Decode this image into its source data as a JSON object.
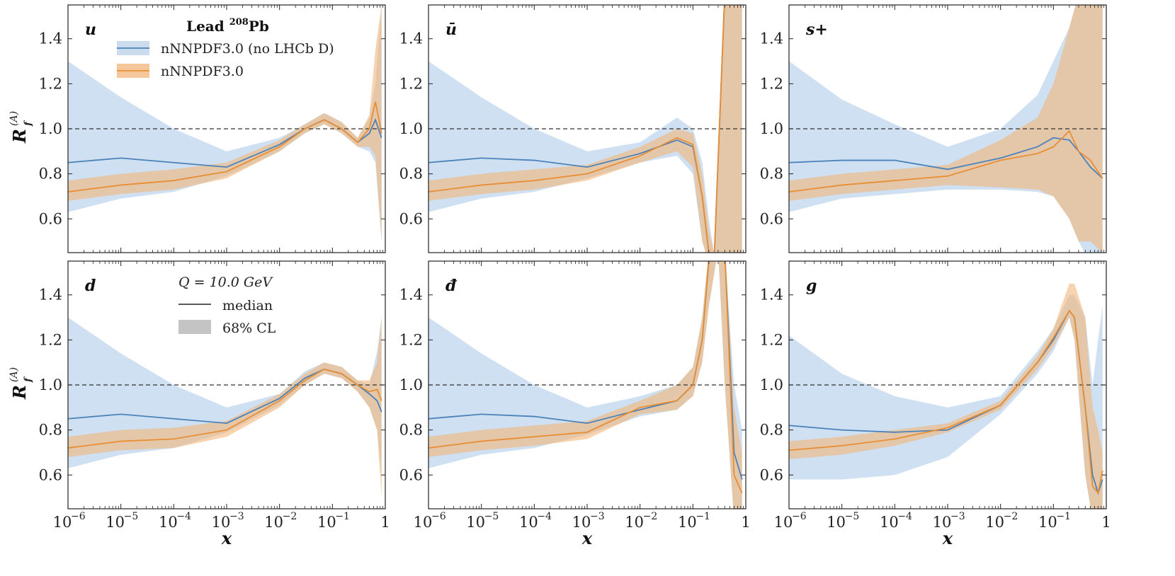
{
  "chart_data": [
    {
      "type": "line",
      "panel": "u",
      "label": "u",
      "x": [
        1e-06,
        1e-05,
        0.0001,
        0.001,
        0.01,
        0.03,
        0.07,
        0.15,
        0.3,
        0.5,
        0.65,
        0.85
      ],
      "series": [
        {
          "name": "nNNPDF3.0 (no LHCb D)",
          "median": [
            0.85,
            0.87,
            0.85,
            0.83,
            0.93,
            1.0,
            1.04,
            1.0,
            0.94,
            0.98,
            1.04,
            0.96
          ],
          "lo": [
            0.63,
            0.69,
            0.72,
            0.79,
            0.9,
            0.98,
            1.02,
            0.98,
            0.92,
            0.9,
            0.85,
            0.5
          ],
          "hi": [
            1.3,
            1.14,
            1.0,
            0.9,
            0.96,
            1.02,
            1.07,
            1.03,
            0.96,
            1.05,
            1.2,
            1.55
          ]
        },
        {
          "name": "nNNPDF3.0",
          "median": [
            0.72,
            0.75,
            0.77,
            0.81,
            0.92,
            1.0,
            1.04,
            1.0,
            0.94,
            1.0,
            1.12,
            0.98
          ],
          "lo": [
            0.68,
            0.71,
            0.73,
            0.78,
            0.9,
            0.98,
            1.02,
            0.98,
            0.92,
            0.92,
            0.88,
            0.5
          ],
          "hi": [
            0.77,
            0.8,
            0.82,
            0.85,
            0.95,
            1.02,
            1.07,
            1.03,
            0.96,
            1.06,
            1.35,
            1.55
          ]
        }
      ]
    },
    {
      "type": "line",
      "panel": "ubar",
      "label": "ū",
      "x": [
        1e-06,
        1e-05,
        0.0001,
        0.001,
        0.01,
        0.05,
        0.1,
        0.15,
        0.2,
        0.25,
        0.4,
        0.6,
        0.85
      ],
      "series": [
        {
          "name": "nNNPDF3.0 (no LHCb D)",
          "median": [
            0.85,
            0.87,
            0.86,
            0.83,
            0.89,
            0.95,
            0.92,
            0.7,
            0.45,
            0.3,
            1.6,
            1.6,
            1.6
          ],
          "lo": [
            0.63,
            0.69,
            0.72,
            0.78,
            0.85,
            0.88,
            0.8,
            0.5,
            0.3,
            0.3,
            0.3,
            0.3,
            0.3
          ],
          "hi": [
            1.3,
            1.14,
            1.0,
            0.9,
            0.94,
            1.05,
            1.0,
            0.85,
            0.6,
            0.45,
            1.6,
            1.6,
            1.6
          ]
        },
        {
          "name": "nNNPDF3.0",
          "median": [
            0.72,
            0.75,
            0.77,
            0.8,
            0.88,
            0.96,
            0.93,
            0.7,
            0.45,
            0.3,
            1.6,
            1.6,
            1.6
          ],
          "lo": [
            0.68,
            0.71,
            0.73,
            0.77,
            0.85,
            0.9,
            0.83,
            0.5,
            0.3,
            0.3,
            0.3,
            0.3,
            0.3
          ],
          "hi": [
            0.77,
            0.8,
            0.82,
            0.84,
            0.92,
            1.0,
            0.98,
            0.8,
            0.55,
            0.45,
            1.6,
            1.6,
            1.6
          ]
        }
      ]
    },
    {
      "type": "line",
      "panel": "splus",
      "label": "s+",
      "x": [
        1e-06,
        1e-05,
        0.0001,
        0.001,
        0.01,
        0.05,
        0.1,
        0.2,
        0.3,
        0.5,
        0.85
      ],
      "series": [
        {
          "name": "nNNPDF3.0 (no LHCb D)",
          "median": [
            0.85,
            0.86,
            0.86,
            0.82,
            0.87,
            0.92,
            0.96,
            0.95,
            0.9,
            0.83,
            0.78
          ],
          "lo": [
            0.63,
            0.69,
            0.71,
            0.73,
            0.73,
            0.72,
            0.7,
            0.6,
            0.5,
            0.4,
            0.35
          ],
          "hi": [
            1.3,
            1.13,
            1.02,
            0.92,
            1.0,
            1.15,
            1.3,
            1.45,
            1.6,
            1.6,
            1.6
          ]
        },
        {
          "name": "nNNPDF3.0",
          "median": [
            0.72,
            0.75,
            0.77,
            0.79,
            0.86,
            0.89,
            0.92,
            0.99,
            0.9,
            0.86,
            0.78
          ],
          "lo": [
            0.68,
            0.71,
            0.73,
            0.75,
            0.74,
            0.73,
            0.7,
            0.6,
            0.5,
            0.5,
            0.45
          ],
          "hi": [
            0.77,
            0.8,
            0.82,
            0.84,
            0.95,
            1.05,
            1.2,
            1.45,
            1.6,
            1.6,
            1.6
          ]
        }
      ]
    },
    {
      "type": "line",
      "panel": "d",
      "label": "d",
      "x": [
        1e-06,
        1e-05,
        0.0001,
        0.001,
        0.01,
        0.03,
        0.07,
        0.15,
        0.3,
        0.5,
        0.7,
        0.85
      ],
      "series": [
        {
          "name": "nNNPDF3.0 (no LHCb D)",
          "median": [
            0.85,
            0.87,
            0.85,
            0.83,
            0.94,
            1.03,
            1.07,
            1.05,
            1.0,
            0.96,
            0.93,
            0.88
          ],
          "lo": [
            0.63,
            0.69,
            0.72,
            0.79,
            0.91,
            1.0,
            1.05,
            1.03,
            0.97,
            0.9,
            0.8,
            0.6
          ],
          "hi": [
            1.3,
            1.14,
            1.0,
            0.9,
            0.96,
            1.06,
            1.1,
            1.08,
            1.02,
            1.0,
            1.15,
            1.3
          ]
        },
        {
          "name": "nNNPDF3.0",
          "median": [
            0.72,
            0.75,
            0.76,
            0.8,
            0.93,
            1.02,
            1.07,
            1.05,
            1.0,
            0.97,
            0.98,
            0.93
          ],
          "lo": [
            0.68,
            0.71,
            0.72,
            0.77,
            0.9,
            1.0,
            1.05,
            1.03,
            0.97,
            0.9,
            0.8,
            0.5
          ],
          "hi": [
            0.77,
            0.8,
            0.81,
            0.84,
            0.96,
            1.05,
            1.1,
            1.08,
            1.02,
            1.02,
            1.1,
            1.3
          ]
        }
      ]
    },
    {
      "type": "line",
      "panel": "dbar",
      "label": "đ",
      "x": [
        1e-06,
        1e-05,
        0.0001,
        0.001,
        0.01,
        0.05,
        0.1,
        0.15,
        0.2,
        0.3,
        0.4,
        0.6,
        0.85
      ],
      "series": [
        {
          "name": "nNNPDF3.0 (no LHCb D)",
          "median": [
            0.85,
            0.87,
            0.86,
            0.83,
            0.89,
            0.93,
            1.0,
            1.2,
            1.55,
            1.6,
            1.6,
            0.7,
            0.58
          ],
          "lo": [
            0.63,
            0.69,
            0.72,
            0.78,
            0.86,
            0.89,
            0.95,
            1.1,
            1.35,
            1.6,
            1.0,
            0.4,
            0.4
          ],
          "hi": [
            1.3,
            1.14,
            1.0,
            0.9,
            0.95,
            1.0,
            1.08,
            1.3,
            1.6,
            1.6,
            1.6,
            1.0,
            0.8
          ]
        },
        {
          "name": "nNNPDF3.0",
          "median": [
            0.72,
            0.75,
            0.77,
            0.79,
            0.9,
            0.93,
            1.0,
            1.2,
            1.55,
            1.6,
            1.6,
            0.6,
            0.52
          ],
          "lo": [
            0.68,
            0.71,
            0.73,
            0.76,
            0.87,
            0.89,
            0.95,
            1.1,
            1.35,
            1.6,
            1.0,
            0.4,
            0.4
          ],
          "hi": [
            0.77,
            0.8,
            0.82,
            0.84,
            0.93,
            1.0,
            1.08,
            1.3,
            1.6,
            1.6,
            1.6,
            0.9,
            0.7
          ]
        }
      ]
    },
    {
      "type": "line",
      "panel": "g",
      "label": "g",
      "x": [
        1e-06,
        1e-05,
        0.0001,
        0.001,
        0.01,
        0.05,
        0.1,
        0.2,
        0.25,
        0.4,
        0.55,
        0.7,
        0.85
      ],
      "series": [
        {
          "name": "nNNPDF3.0 (no LHCb D)",
          "median": [
            0.82,
            0.8,
            0.79,
            0.8,
            0.91,
            1.1,
            1.2,
            1.33,
            1.3,
            0.9,
            0.6,
            0.52,
            0.58
          ],
          "lo": [
            0.58,
            0.58,
            0.6,
            0.68,
            0.87,
            1.05,
            1.15,
            1.3,
            1.2,
            0.6,
            0.4,
            0.4,
            0.4
          ],
          "hi": [
            1.22,
            1.05,
            0.95,
            0.9,
            0.95,
            1.15,
            1.25,
            1.4,
            1.4,
            1.3,
            1.0,
            1.2,
            1.35
          ]
        },
        {
          "name": "nNNPDF3.0",
          "median": [
            0.71,
            0.73,
            0.76,
            0.81,
            0.91,
            1.1,
            1.21,
            1.33,
            1.3,
            0.9,
            0.55,
            0.52,
            0.62
          ],
          "lo": [
            0.67,
            0.69,
            0.73,
            0.79,
            0.89,
            1.07,
            1.17,
            1.3,
            1.2,
            0.6,
            0.4,
            0.4,
            0.4
          ],
          "hi": [
            0.75,
            0.77,
            0.8,
            0.83,
            0.93,
            1.13,
            1.25,
            1.45,
            1.45,
            1.3,
            0.9,
            0.8,
            0.7
          ]
        }
      ]
    }
  ],
  "axes": {
    "xlabel": "x",
    "ylabel": "R",
    "ylabel_sub": "f",
    "ylabel_sup": "(A)",
    "xscale": "log",
    "xlim": [
      1e-06,
      1
    ],
    "ylim": [
      0.45,
      1.55
    ],
    "yticks": [
      "0.6",
      "0.8",
      "1.0",
      "1.2",
      "1.4"
    ],
    "xtick_base": "10",
    "xtick_exps": [
      "−6",
      "−5",
      "−4",
      "−3",
      "−2",
      "−1"
    ],
    "xtick_last": "1",
    "reference_line": 1.0
  },
  "legend": {
    "title": "Lead",
    "title_sup": "208",
    "title_element": "Pb",
    "entries": [
      {
        "label": "nNNPDF3.0 (no LHCb D)",
        "color": "#4b82b9",
        "band": "#cadcee"
      },
      {
        "label": "nNNPDF3.0",
        "color": "#e88e35",
        "band": "#f5c79b"
      }
    ],
    "scale_label": "Q = 10.0 GeV",
    "median_label": "median",
    "band_label": "68% CL",
    "band_swatch": "#c4c4c4"
  },
  "colors": {
    "series1": "#4b82b9",
    "band1": "#c6dbef",
    "series2": "#e88e35",
    "band2": "#f4b57a",
    "overlap": "#d8cbb8"
  }
}
